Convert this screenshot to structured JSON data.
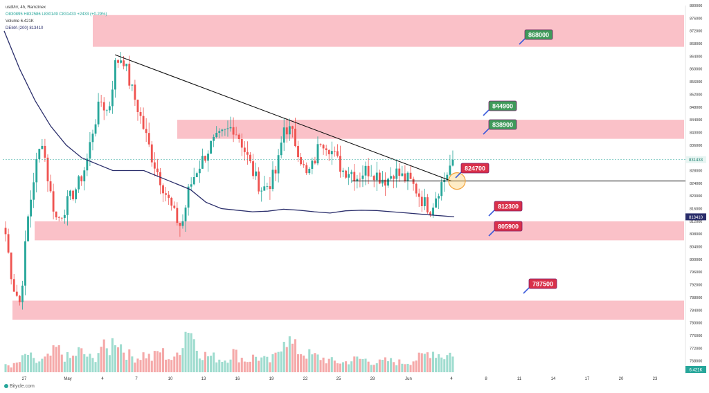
{
  "legend": {
    "symbol_line": "usdt/irr, 4h, Ramzinex",
    "ohlc_line": "O830895 H832586 L830149 C831433 +2433 (+0.29%)",
    "volume_line": "Volume  6.421K",
    "dema_line": "DEMA (200)  813410"
  },
  "watermark": "Bitycle.com",
  "colors": {
    "up": "#26a69a",
    "down": "#ef5350",
    "zone_fill": "#f9b6be",
    "dema_line": "#2a2e6b",
    "label_green": "#3f9a5a",
    "label_red": "#d9304a",
    "label_purple": "#c0244e"
  },
  "chart_data": {
    "type": "candlestick",
    "title": "",
    "xlabel": "",
    "ylabel": "",
    "ylim": [
      764000,
      880000
    ],
    "y_ticks": [
      768000,
      772000,
      776000,
      780000,
      784000,
      788000,
      792000,
      796000,
      800000,
      804000,
      808000,
      812000,
      816000,
      820000,
      824000,
      828000,
      832000,
      836000,
      840000,
      844000,
      848000,
      852000,
      856000,
      860000,
      864000,
      868000,
      872000,
      876000,
      880000
    ],
    "x_ticks": [
      "27",
      "May",
      "4",
      "7",
      "10",
      "13",
      "16",
      "19",
      "22",
      "25",
      "28",
      "Jun",
      "4",
      "8",
      "11",
      "14",
      "17",
      "20",
      "23"
    ],
    "last_price_label": "831433",
    "dema_price_label": "813410",
    "volume_axis_label": "6.421K",
    "zones": [
      {
        "from": 867000,
        "to": 877000
      },
      {
        "from": 838000,
        "to": 844000
      },
      {
        "from": 806000,
        "to": 812000
      },
      {
        "from": 781000,
        "to": 787000
      }
    ],
    "annotations": [
      {
        "text": "868000",
        "price": 868000,
        "style": "green"
      },
      {
        "text": "844900",
        "price": 844900,
        "style": "green"
      },
      {
        "text": "838900",
        "price": 838900,
        "style": "green"
      },
      {
        "text": "824700",
        "price": 824700,
        "style": "red"
      },
      {
        "text": "812300",
        "price": 812300,
        "style": "red"
      },
      {
        "text": "805900",
        "price": 805900,
        "style": "red"
      },
      {
        "text": "787500",
        "price": 787500,
        "style": "red"
      }
    ],
    "trendline": {
      "start_price": 864500,
      "end_price": 824700
    },
    "horizontal_line_price": 824700,
    "price_path": [
      808000,
      792000,
      786000,
      812000,
      828000,
      838000,
      822000,
      812000,
      816000,
      820000,
      824000,
      830000,
      842000,
      850000,
      846000,
      862000,
      864000,
      855000,
      848000,
      840000,
      832000,
      826000,
      820000,
      814000,
      810000,
      822000,
      828000,
      832000,
      836000,
      838000,
      840000,
      842000,
      838000,
      832000,
      826000,
      822000,
      824000,
      828000,
      842000,
      840000,
      834000,
      826000,
      830000,
      838000,
      836000,
      832000,
      828000,
      828000,
      826000,
      828000,
      828000,
      826000,
      825000,
      828000,
      826000,
      825000,
      822000,
      818000,
      816000,
      822000,
      826000,
      831433
    ],
    "dema_path": [
      872000,
      860000,
      850000,
      842000,
      836000,
      832000,
      830000,
      828000,
      828000,
      828000,
      826000,
      824000,
      822000,
      818000,
      816000,
      815500,
      815000,
      815200,
      815800,
      815500,
      815000,
      814600,
      815300,
      815500,
      815400,
      815000,
      814600,
      814200,
      813800,
      813410
    ],
    "volume_profile": [
      0.15,
      0.12,
      0.2,
      0.35,
      0.18,
      0.22,
      0.28,
      0.45,
      0.3,
      0.25,
      0.4,
      0.32,
      0.22,
      0.5,
      0.38,
      0.7,
      0.45,
      0.3,
      0.28,
      0.35,
      0.25,
      0.42,
      0.3,
      0.22,
      0.55,
      0.95,
      0.48,
      0.33,
      0.3,
      0.26,
      0.24,
      0.38,
      0.28,
      0.22,
      0.3,
      0.25,
      0.2,
      0.32,
      0.75,
      0.52,
      0.4,
      0.35,
      0.3,
      0.28,
      0.22,
      0.2,
      0.18,
      0.22,
      0.25,
      0.24,
      0.2,
      0.18,
      0.22,
      0.2,
      0.18,
      0.2,
      0.25,
      0.3,
      0.42,
      0.35,
      0.3,
      0.38
    ]
  }
}
